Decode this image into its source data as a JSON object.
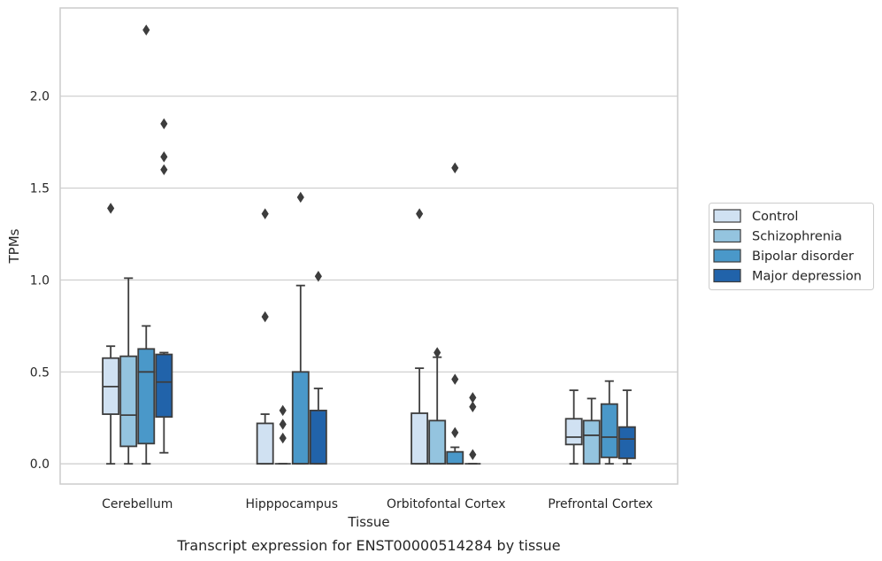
{
  "chart_data": {
    "type": "boxplot",
    "caption": "Transcript expression for ENST00000514284 by tissue",
    "xlabel": "Tissue",
    "ylabel": "TPMs",
    "ylim": [
      -0.11,
      2.48
    ],
    "yticks": [
      0.0,
      0.5,
      1.0,
      1.5,
      2.0
    ],
    "ytick_labels": [
      "0.0",
      "0.5",
      "1.0",
      "1.5",
      "2.0"
    ],
    "grid": "horizontal",
    "legend_position": "right",
    "categories": [
      "Cerebellum",
      "Hipppocampus",
      "Orbitofontal Cortex",
      "Prefrontal Cortex"
    ],
    "series": [
      {
        "name": "Control",
        "color": "#d0e1f2",
        "boxes": [
          {
            "whislo": 0.0,
            "q1": 0.27,
            "med": 0.42,
            "q3": 0.575,
            "whishi": 0.64,
            "fliers": [
              1.39
            ]
          },
          {
            "whislo": 0.0,
            "q1": 0.0,
            "med": 0.0,
            "q3": 0.22,
            "whishi": 0.27,
            "fliers": [
              0.8,
              1.36
            ]
          },
          {
            "whislo": 0.0,
            "q1": 0.0,
            "med": 0.0,
            "q3": 0.275,
            "whishi": 0.52,
            "fliers": [
              1.36
            ]
          },
          {
            "whislo": 0.0,
            "q1": 0.105,
            "med": 0.145,
            "q3": 0.245,
            "whishi": 0.4,
            "fliers": []
          }
        ]
      },
      {
        "name": "Schizophrenia",
        "color": "#94c4df",
        "boxes": [
          {
            "whislo": 0.0,
            "q1": 0.095,
            "med": 0.265,
            "q3": 0.585,
            "whishi": 1.01,
            "fliers": []
          },
          {
            "whislo": 0.0,
            "q1": 0.0,
            "med": 0.0,
            "q3": 0.0,
            "whishi": 0.0,
            "fliers": [
              0.14,
              0.215,
              0.29
            ]
          },
          {
            "whislo": 0.0,
            "q1": 0.0,
            "med": 0.0,
            "q3": 0.235,
            "whishi": 0.58,
            "fliers": [
              0.605
            ]
          },
          {
            "whislo": 0.0,
            "q1": 0.0,
            "med": 0.155,
            "q3": 0.235,
            "whishi": 0.355,
            "fliers": []
          }
        ]
      },
      {
        "name": "Bipolar disorder",
        "color": "#4a98c9",
        "boxes": [
          {
            "whislo": 0.0,
            "q1": 0.11,
            "med": 0.5,
            "q3": 0.625,
            "whishi": 0.75,
            "fliers": [
              2.36
            ]
          },
          {
            "whislo": 0.0,
            "q1": 0.0,
            "med": 0.0,
            "q3": 0.5,
            "whishi": 0.97,
            "fliers": [
              1.45
            ]
          },
          {
            "whislo": 0.0,
            "q1": 0.0,
            "med": 0.0,
            "q3": 0.065,
            "whishi": 0.09,
            "fliers": [
              0.17,
              0.46,
              1.61
            ]
          },
          {
            "whislo": 0.0,
            "q1": 0.035,
            "med": 0.145,
            "q3": 0.325,
            "whishi": 0.45,
            "fliers": []
          }
        ]
      },
      {
        "name": "Major depression",
        "color": "#2163aa",
        "boxes": [
          {
            "whislo": 0.06,
            "q1": 0.255,
            "med": 0.445,
            "q3": 0.595,
            "whishi": 0.605,
            "fliers": [
              1.6,
              1.67,
              1.85
            ]
          },
          {
            "whislo": 0.0,
            "q1": 0.0,
            "med": 0.0,
            "q3": 0.29,
            "whishi": 0.41,
            "fliers": [
              1.02
            ]
          },
          {
            "whislo": 0.0,
            "q1": 0.0,
            "med": 0.0,
            "q3": 0.0,
            "whishi": 0.0,
            "fliers": [
              0.05,
              0.31,
              0.36
            ]
          },
          {
            "whislo": 0.0,
            "q1": 0.03,
            "med": 0.135,
            "q3": 0.2,
            "whishi": 0.4,
            "fliers": []
          }
        ]
      }
    ],
    "colors": {
      "frame": "#cccccc",
      "grid": "#cccccc",
      "edge": "#3d3d3d",
      "text": "#262626"
    }
  }
}
